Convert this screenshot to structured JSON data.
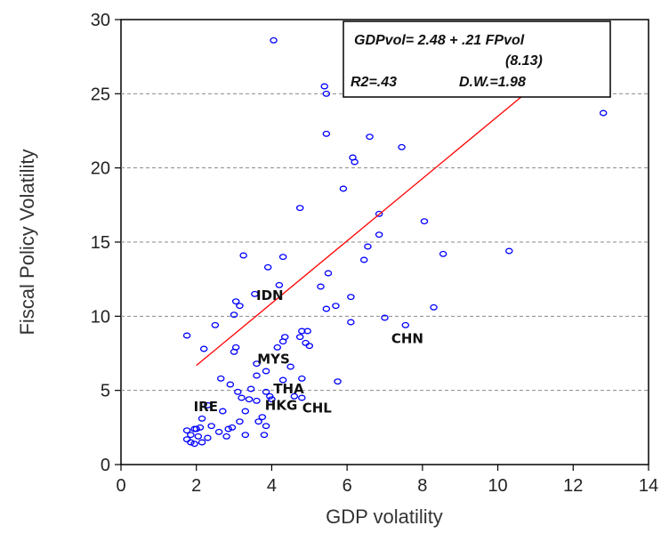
{
  "chart_data": {
    "type": "scatter",
    "xlabel": "GDP volatility",
    "ylabel": "Fiscal Policy Volatility",
    "xlim": [
      0,
      14
    ],
    "ylim": [
      0,
      30
    ],
    "x_ticks": [
      "0",
      "2",
      "4",
      "6",
      "8",
      "10",
      "12",
      "14"
    ],
    "y_ticks": [
      "0",
      "5",
      "10",
      "15",
      "20",
      "25",
      "30"
    ],
    "grid": "horizontal dashed",
    "marker_color": "#0000ff",
    "fit_line_color": "#ff0000",
    "fit_line": {
      "intercept": 2.48,
      "slope": 0.21,
      "x_range": [
        2.0,
        12.5
      ]
    },
    "equation": {
      "line1": "GDPvol= 2.48 + .21 FPvol",
      "line2": "(8.13)",
      "r2": "R2=.43",
      "dw": "D.W.=1.98"
    },
    "annotations": [
      {
        "text": "IDN",
        "x": 3.95,
        "y": 11.1
      },
      {
        "text": "CHN",
        "x": 7.6,
        "y": 8.2
      },
      {
        "text": "MYS",
        "x": 4.05,
        "y": 6.8
      },
      {
        "text": "THA",
        "x": 4.45,
        "y": 4.8
      },
      {
        "text": "HKG",
        "x": 4.25,
        "y": 3.7
      },
      {
        "text": "CHL",
        "x": 5.2,
        "y": 3.5
      },
      {
        "text": "IRE",
        "x": 2.25,
        "y": 3.6
      }
    ],
    "points": [
      [
        4.05,
        28.6
      ],
      [
        5.4,
        25.5
      ],
      [
        5.45,
        25.0
      ],
      [
        12.8,
        23.7
      ],
      [
        5.45,
        22.3
      ],
      [
        6.6,
        22.1
      ],
      [
        7.45,
        21.4
      ],
      [
        6.15,
        20.7
      ],
      [
        6.2,
        20.4
      ],
      [
        5.9,
        18.6
      ],
      [
        4.75,
        17.3
      ],
      [
        6.85,
        16.9
      ],
      [
        8.05,
        16.4
      ],
      [
        6.85,
        15.5
      ],
      [
        6.55,
        14.7
      ],
      [
        8.55,
        14.2
      ],
      [
        10.3,
        14.4
      ],
      [
        3.25,
        14.1
      ],
      [
        4.3,
        14.0
      ],
      [
        3.9,
        13.3
      ],
      [
        6.45,
        13.8
      ],
      [
        5.5,
        12.9
      ],
      [
        4.2,
        12.1
      ],
      [
        5.3,
        12.0
      ],
      [
        3.55,
        11.5
      ],
      [
        3.05,
        11.0
      ],
      [
        3.15,
        10.7
      ],
      [
        5.7,
        10.7
      ],
      [
        5.45,
        10.5
      ],
      [
        8.3,
        10.6
      ],
      [
        3.0,
        10.1
      ],
      [
        6.1,
        11.3
      ],
      [
        7.0,
        9.9
      ],
      [
        7.55,
        9.4
      ],
      [
        6.1,
        9.6
      ],
      [
        2.5,
        9.4
      ],
      [
        1.75,
        8.7
      ],
      [
        4.8,
        9.0
      ],
      [
        4.95,
        9.0
      ],
      [
        4.75,
        8.6
      ],
      [
        4.35,
        8.6
      ],
      [
        4.9,
        8.2
      ],
      [
        5.0,
        8.0
      ],
      [
        4.3,
        8.3
      ],
      [
        4.15,
        7.9
      ],
      [
        2.2,
        7.8
      ],
      [
        3.05,
        7.9
      ],
      [
        3.0,
        7.6
      ],
      [
        3.6,
        6.8
      ],
      [
        3.85,
        6.3
      ],
      [
        4.5,
        6.6
      ],
      [
        3.6,
        6.0
      ],
      [
        4.8,
        5.8
      ],
      [
        5.75,
        5.6
      ],
      [
        2.65,
        5.8
      ],
      [
        4.3,
        5.7
      ],
      [
        2.9,
        5.4
      ],
      [
        3.45,
        5.1
      ],
      [
        3.1,
        4.9
      ],
      [
        3.85,
        4.9
      ],
      [
        3.95,
        4.6
      ],
      [
        4.0,
        4.4
      ],
      [
        4.6,
        4.6
      ],
      [
        4.8,
        4.5
      ],
      [
        3.6,
        4.3
      ],
      [
        3.4,
        4.4
      ],
      [
        3.2,
        4.5
      ],
      [
        2.3,
        4.0
      ],
      [
        2.7,
        3.6
      ],
      [
        3.3,
        3.6
      ],
      [
        3.75,
        3.2
      ],
      [
        2.15,
        3.1
      ],
      [
        3.15,
        2.9
      ],
      [
        3.65,
        2.9
      ],
      [
        3.85,
        2.6
      ],
      [
        2.4,
        2.6
      ],
      [
        2.85,
        2.4
      ],
      [
        2.95,
        2.5
      ],
      [
        2.1,
        2.5
      ],
      [
        1.95,
        2.4
      ],
      [
        1.75,
        2.3
      ],
      [
        1.85,
        2.0
      ],
      [
        2.05,
        1.9
      ],
      [
        2.3,
        1.8
      ],
      [
        1.75,
        1.7
      ],
      [
        1.85,
        1.5
      ],
      [
        1.95,
        1.4
      ],
      [
        2.15,
        1.5
      ],
      [
        2.8,
        1.9
      ],
      [
        3.3,
        2.0
      ],
      [
        3.8,
        2.0
      ],
      [
        2.6,
        2.2
      ],
      [
        2.0,
        2.4
      ]
    ]
  }
}
